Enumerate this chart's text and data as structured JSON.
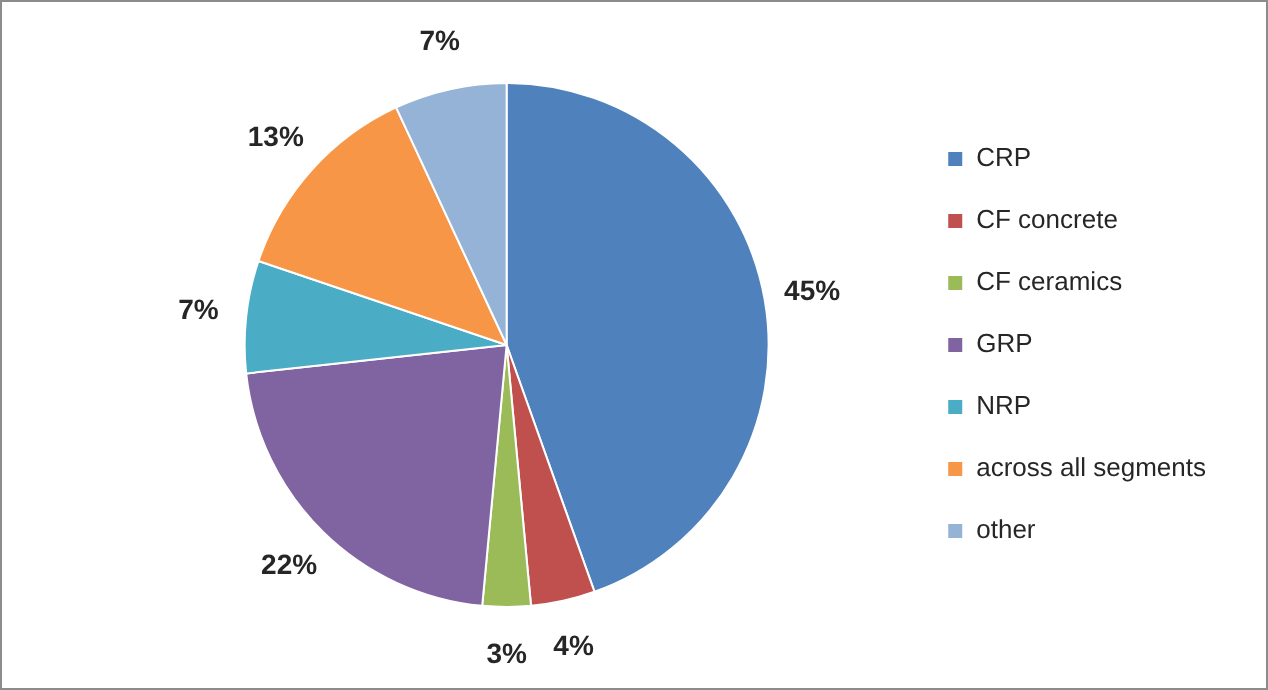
{
  "chart_data": {
    "type": "pie",
    "categories": [
      "CRP",
      "CF concrete",
      "CF ceramics",
      "GRP",
      "NRP",
      "across all segments",
      "other"
    ],
    "values": [
      45,
      4,
      3,
      22,
      7,
      13,
      7
    ],
    "colors": [
      "#4f81bd",
      "#c0504d",
      "#9bbb59",
      "#8064a2",
      "#4bacc6",
      "#f79646",
      "#95b3d7"
    ],
    "value_labels": [
      "45%",
      "4%",
      "3%",
      "22%",
      "7%",
      "13%",
      "7%"
    ],
    "legend": "right"
  }
}
